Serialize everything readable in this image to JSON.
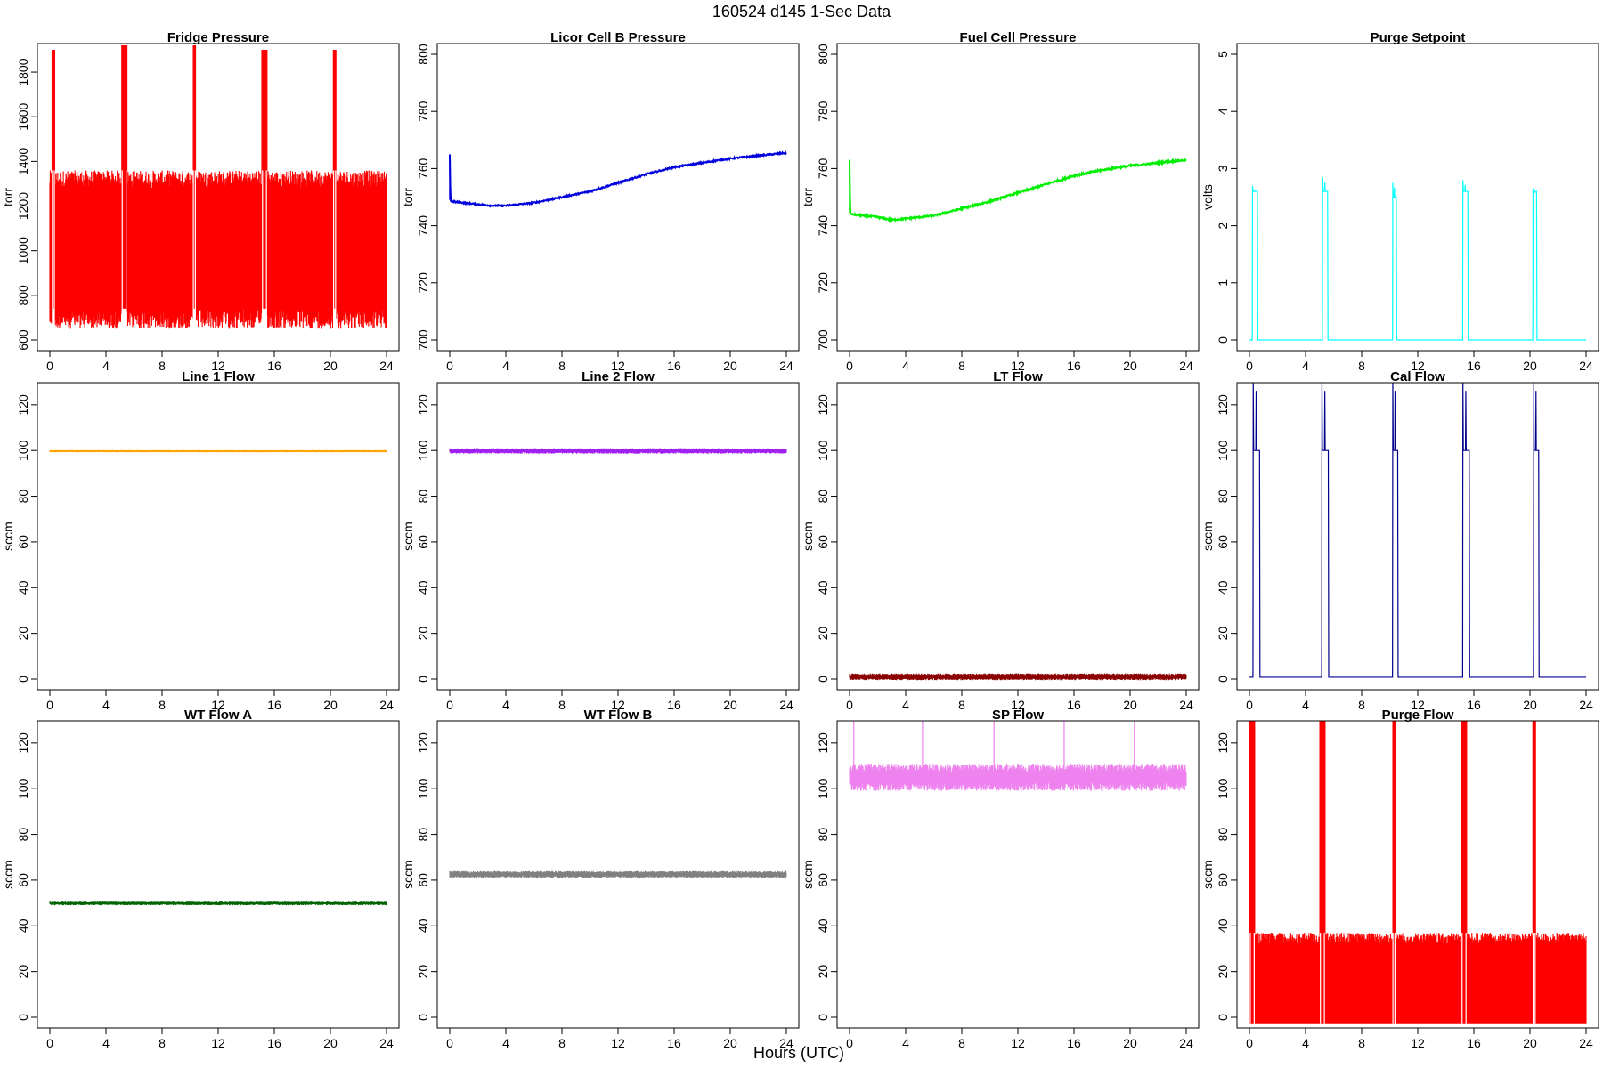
{
  "figure": {
    "title": "160524   d145   1-Sec Data",
    "xlabel": "Hours (UTC)"
  },
  "chart_data": [
    {
      "type": "line",
      "title": "Fridge Pressure",
      "ylabel": "torr",
      "color": "#ff0000",
      "xlim": [
        0,
        24
      ],
      "ylim": [
        600,
        1880
      ],
      "xticks": [
        0,
        4,
        8,
        12,
        16,
        20,
        24
      ],
      "yticks": [
        600,
        800,
        1000,
        1200,
        1400,
        1600,
        1800
      ],
      "pattern": "band",
      "band_low": 740,
      "band_high": 1280,
      "band_low_min": 650,
      "band_high_max": 1360,
      "spikes": [
        {
          "x": 0.25,
          "w": 0.2,
          "y": 1900
        },
        {
          "x": 5.3,
          "w": 0.4,
          "y": 1920
        },
        {
          "x": 10.3,
          "w": 0.2,
          "y": 1920
        },
        {
          "x": 15.3,
          "w": 0.4,
          "y": 1900
        },
        {
          "x": 20.3,
          "w": 0.2,
          "y": 1900
        }
      ]
    },
    {
      "type": "line",
      "title": "Licor Cell B Pressure",
      "ylabel": "torr",
      "color": "#0000dd",
      "xlim": [
        0,
        24
      ],
      "ylim": [
        700,
        800
      ],
      "xticks": [
        0,
        4,
        8,
        12,
        16,
        20,
        24
      ],
      "yticks": [
        700,
        720,
        740,
        760,
        780,
        800
      ],
      "pattern": "curve",
      "noise": 0.5,
      "x": [
        0,
        0.05,
        0.1,
        1,
        2,
        3,
        4,
        6,
        8,
        10,
        12,
        14,
        16,
        18,
        20,
        22,
        24
      ],
      "y": [
        765,
        749,
        748.5,
        748,
        747.5,
        747,
        747,
        748,
        750,
        752,
        755,
        758,
        760.5,
        762,
        763.5,
        764.5,
        765.5
      ]
    },
    {
      "type": "line",
      "title": "Fuel Cell Pressure",
      "ylabel": "torr",
      "color": "#00ee00",
      "xlim": [
        0,
        24
      ],
      "ylim": [
        700,
        800
      ],
      "xticks": [
        0,
        4,
        8,
        12,
        16,
        20,
        24
      ],
      "yticks": [
        700,
        720,
        740,
        760,
        780,
        800
      ],
      "pattern": "curve",
      "noise": 0.6,
      "x": [
        0,
        0.05,
        0.1,
        1,
        2,
        3,
        4,
        6,
        8,
        10,
        12,
        14,
        16,
        18,
        20,
        22,
        24
      ],
      "y": [
        763,
        744.5,
        744,
        743.5,
        743,
        742,
        742.5,
        743.5,
        746,
        748.5,
        751.5,
        754.5,
        757.5,
        759.5,
        761,
        762,
        763
      ]
    },
    {
      "type": "line",
      "title": "Purge Setpoint",
      "ylabel": "volts",
      "color": "#00ffff",
      "xlim": [
        0,
        24
      ],
      "ylim": [
        0,
        5
      ],
      "xticks": [
        0,
        4,
        8,
        12,
        16,
        20,
        24
      ],
      "yticks": [
        0,
        1,
        2,
        3,
        4,
        5
      ],
      "pattern": "pulses",
      "base": 0,
      "noise": 0,
      "pulses": [
        {
          "x": 0.2,
          "w": 0.4,
          "y": 2.6,
          "peak": 2.7
        },
        {
          "x": 5.2,
          "w": 0.4,
          "y": 2.6,
          "peak": 2.85
        },
        {
          "x": 10.2,
          "w": 0.3,
          "y": 2.5,
          "peak": 2.75
        },
        {
          "x": 15.2,
          "w": 0.4,
          "y": 2.6,
          "peak": 2.8
        },
        {
          "x": 20.2,
          "w": 0.3,
          "y": 2.6,
          "peak": 2.65
        }
      ]
    },
    {
      "type": "line",
      "title": "Line 1 Flow",
      "ylabel": "sccm",
      "color": "#ffa500",
      "xlim": [
        0,
        24
      ],
      "ylim": [
        0,
        125
      ],
      "xticks": [
        0,
        4,
        8,
        12,
        16,
        20,
        24
      ],
      "yticks": [
        0,
        20,
        40,
        60,
        80,
        100,
        120
      ],
      "pattern": "flat",
      "base": 99.7,
      "noise": 0.5
    },
    {
      "type": "line",
      "title": "Line 2 Flow",
      "ylabel": "sccm",
      "color": "#a020f0",
      "xlim": [
        0,
        24
      ],
      "ylim": [
        0,
        125
      ],
      "xticks": [
        0,
        4,
        8,
        12,
        16,
        20,
        24
      ],
      "yticks": [
        0,
        20,
        40,
        60,
        80,
        100,
        120
      ],
      "pattern": "flat",
      "base": 99.8,
      "noise": 1.2
    },
    {
      "type": "line",
      "title": "LT Flow",
      "ylabel": "sccm",
      "color": "#8b0000",
      "xlim": [
        0,
        24
      ],
      "ylim": [
        0,
        125
      ],
      "xticks": [
        0,
        4,
        8,
        12,
        16,
        20,
        24
      ],
      "yticks": [
        0,
        20,
        40,
        60,
        80,
        100,
        120
      ],
      "pattern": "flat",
      "base": 1.0,
      "noise": 1.5
    },
    {
      "type": "line",
      "title": "Cal Flow",
      "ylabel": "sccm",
      "color": "#00008b",
      "xlim": [
        0,
        24
      ],
      "ylim": [
        0,
        125
      ],
      "xticks": [
        0,
        4,
        8,
        12,
        16,
        20,
        24
      ],
      "yticks": [
        0,
        20,
        40,
        60,
        80,
        100,
        120
      ],
      "pattern": "pulses",
      "base": 0.8,
      "noise": 0,
      "pulses": [
        {
          "x": 0.25,
          "w": 0.5,
          "y": 100,
          "peak": 130
        },
        {
          "x": 5.15,
          "w": 0.5,
          "y": 100,
          "peak": 130
        },
        {
          "x": 10.2,
          "w": 0.4,
          "y": 100,
          "peak": 130
        },
        {
          "x": 15.2,
          "w": 0.5,
          "y": 100,
          "peak": 130
        },
        {
          "x": 20.25,
          "w": 0.4,
          "y": 100,
          "peak": 130
        }
      ]
    },
    {
      "type": "line",
      "title": "WT Flow A",
      "ylabel": "sccm",
      "color": "#006400",
      "xlim": [
        0,
        24
      ],
      "ylim": [
        0,
        125
      ],
      "xticks": [
        0,
        4,
        8,
        12,
        16,
        20,
        24
      ],
      "yticks": [
        0,
        20,
        40,
        60,
        80,
        100,
        120
      ],
      "pattern": "flat",
      "base": 50,
      "noise": 1.0
    },
    {
      "type": "line",
      "title": "WT Flow B",
      "ylabel": "sccm",
      "color": "#808080",
      "xlim": [
        0,
        24
      ],
      "ylim": [
        0,
        125
      ],
      "xticks": [
        0,
        4,
        8,
        12,
        16,
        20,
        24
      ],
      "yticks": [
        0,
        20,
        40,
        60,
        80,
        100,
        120
      ],
      "pattern": "flat",
      "base": 62.5,
      "noise": 1.5
    },
    {
      "type": "line",
      "title": "SP Flow",
      "ylabel": "sccm",
      "color": "#ee82ee",
      "xlim": [
        0,
        24
      ],
      "ylim": [
        0,
        125
      ],
      "xticks": [
        0,
        4,
        8,
        12,
        16,
        20,
        24
      ],
      "yticks": [
        0,
        20,
        40,
        60,
        80,
        100,
        120
      ],
      "pattern": "noisy",
      "base": 105,
      "noise": 6,
      "spikes": [
        {
          "x": 0.3,
          "w": 0.1,
          "y": 130
        },
        {
          "x": 5.2,
          "w": 0.1,
          "y": 130
        },
        {
          "x": 10.3,
          "w": 0.1,
          "y": 130
        },
        {
          "x": 15.3,
          "w": 0.1,
          "y": 130
        },
        {
          "x": 20.3,
          "w": 0.1,
          "y": 130
        }
      ]
    },
    {
      "type": "line",
      "title": "Purge Flow",
      "ylabel": "sccm",
      "color": "#ff0000",
      "xlim": [
        0,
        24
      ],
      "ylim": [
        0,
        125
      ],
      "xticks": [
        0,
        4,
        8,
        12,
        16,
        20,
        24
      ],
      "yticks": [
        0,
        20,
        40,
        60,
        80,
        100,
        120
      ],
      "pattern": "band",
      "band_low": -3,
      "band_high": 32,
      "band_low_min": -3,
      "band_high_max": 37,
      "spikes": [
        {
          "x": 0.2,
          "w": 0.4,
          "y": 130
        },
        {
          "x": 5.2,
          "w": 0.4,
          "y": 130
        },
        {
          "x": 10.3,
          "w": 0.2,
          "y": 130
        },
        {
          "x": 15.3,
          "w": 0.4,
          "y": 130
        },
        {
          "x": 20.3,
          "w": 0.2,
          "y": 130
        }
      ]
    }
  ]
}
